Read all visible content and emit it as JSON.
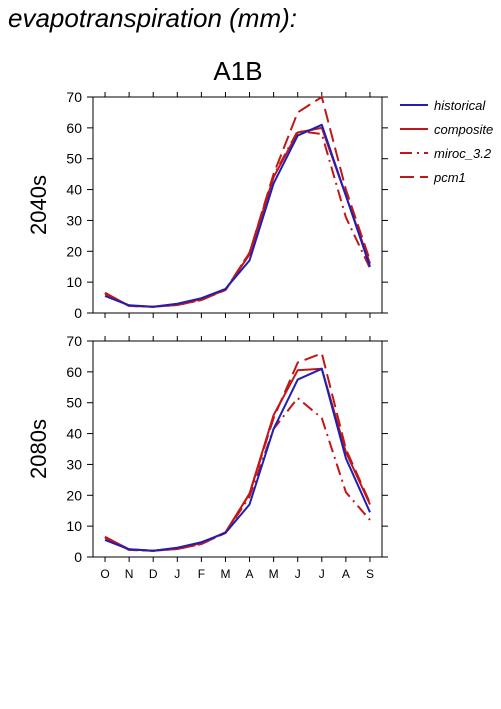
{
  "page": {
    "title": "evapotranspiration (mm):"
  },
  "legend": {
    "placement": "top-right, outside plots",
    "entries": [
      {
        "name": "historical",
        "color": "#1f1fb4",
        "dash": "solid"
      },
      {
        "name": "composite",
        "color": "#c01818",
        "dash": "solid"
      },
      {
        "name": "miroc_3.2",
        "color": "#c01818",
        "dash": "dashdot"
      },
      {
        "name": "pcm1",
        "color": "#c01818",
        "dash": "dashed"
      }
    ]
  },
  "chart_data": [
    {
      "type": "line",
      "title": "A1B",
      "ylabel": "2040s",
      "xlabel": "",
      "categories": [
        "O",
        "N",
        "D",
        "J",
        "F",
        "M",
        "A",
        "M",
        "J",
        "J",
        "A",
        "S"
      ],
      "ylim": [
        0,
        70
      ],
      "yticks": [
        0,
        10,
        20,
        30,
        40,
        50,
        60,
        70
      ],
      "grid": false,
      "series": [
        {
          "name": "historical",
          "values": [
            5.5,
            2.5,
            2.0,
            3.0,
            4.8,
            7.8,
            17.0,
            42.0,
            57.5,
            61.0,
            38.0,
            15.0
          ]
        },
        {
          "name": "composite",
          "values": [
            6.5,
            2.3,
            2.0,
            2.8,
            4.5,
            7.5,
            19.0,
            44.0,
            58.5,
            60.0,
            38.0,
            16.0
          ]
        },
        {
          "name": "miroc_3.2",
          "values": [
            6.2,
            2.3,
            2.0,
            2.6,
            4.2,
            7.5,
            19.5,
            44.5,
            59.0,
            58.0,
            31.0,
            14.5
          ]
        },
        {
          "name": "pcm1",
          "values": [
            6.5,
            2.3,
            2.0,
            2.6,
            4.2,
            7.5,
            19.5,
            45.0,
            65.0,
            70.0,
            40.0,
            17.0
          ]
        }
      ]
    },
    {
      "type": "line",
      "title": "",
      "ylabel": "2080s",
      "xlabel": "",
      "categories": [
        "O",
        "N",
        "D",
        "J",
        "F",
        "M",
        "A",
        "M",
        "J",
        "J",
        "A",
        "S"
      ],
      "ylim": [
        0,
        70
      ],
      "yticks": [
        0,
        10,
        20,
        30,
        40,
        50,
        60,
        70
      ],
      "grid": false,
      "series": [
        {
          "name": "historical",
          "values": [
            5.5,
            2.5,
            2.0,
            3.0,
            4.8,
            7.8,
            17.0,
            41.5,
            57.5,
            61.0,
            32.0,
            14.5
          ]
        },
        {
          "name": "composite",
          "values": [
            6.5,
            2.5,
            2.0,
            2.8,
            4.5,
            8.0,
            20.5,
            46.0,
            60.5,
            61.0,
            34.0,
            17.0
          ]
        },
        {
          "name": "miroc_3.2",
          "values": [
            6.2,
            2.3,
            2.0,
            2.6,
            4.2,
            7.8,
            19.5,
            41.5,
            51.5,
            45.0,
            21.0,
            12.0
          ]
        },
        {
          "name": "pcm1",
          "values": [
            6.5,
            2.3,
            2.0,
            2.6,
            4.2,
            7.8,
            20.5,
            45.0,
            63.0,
            66.0,
            35.0,
            17.5
          ]
        }
      ]
    }
  ]
}
